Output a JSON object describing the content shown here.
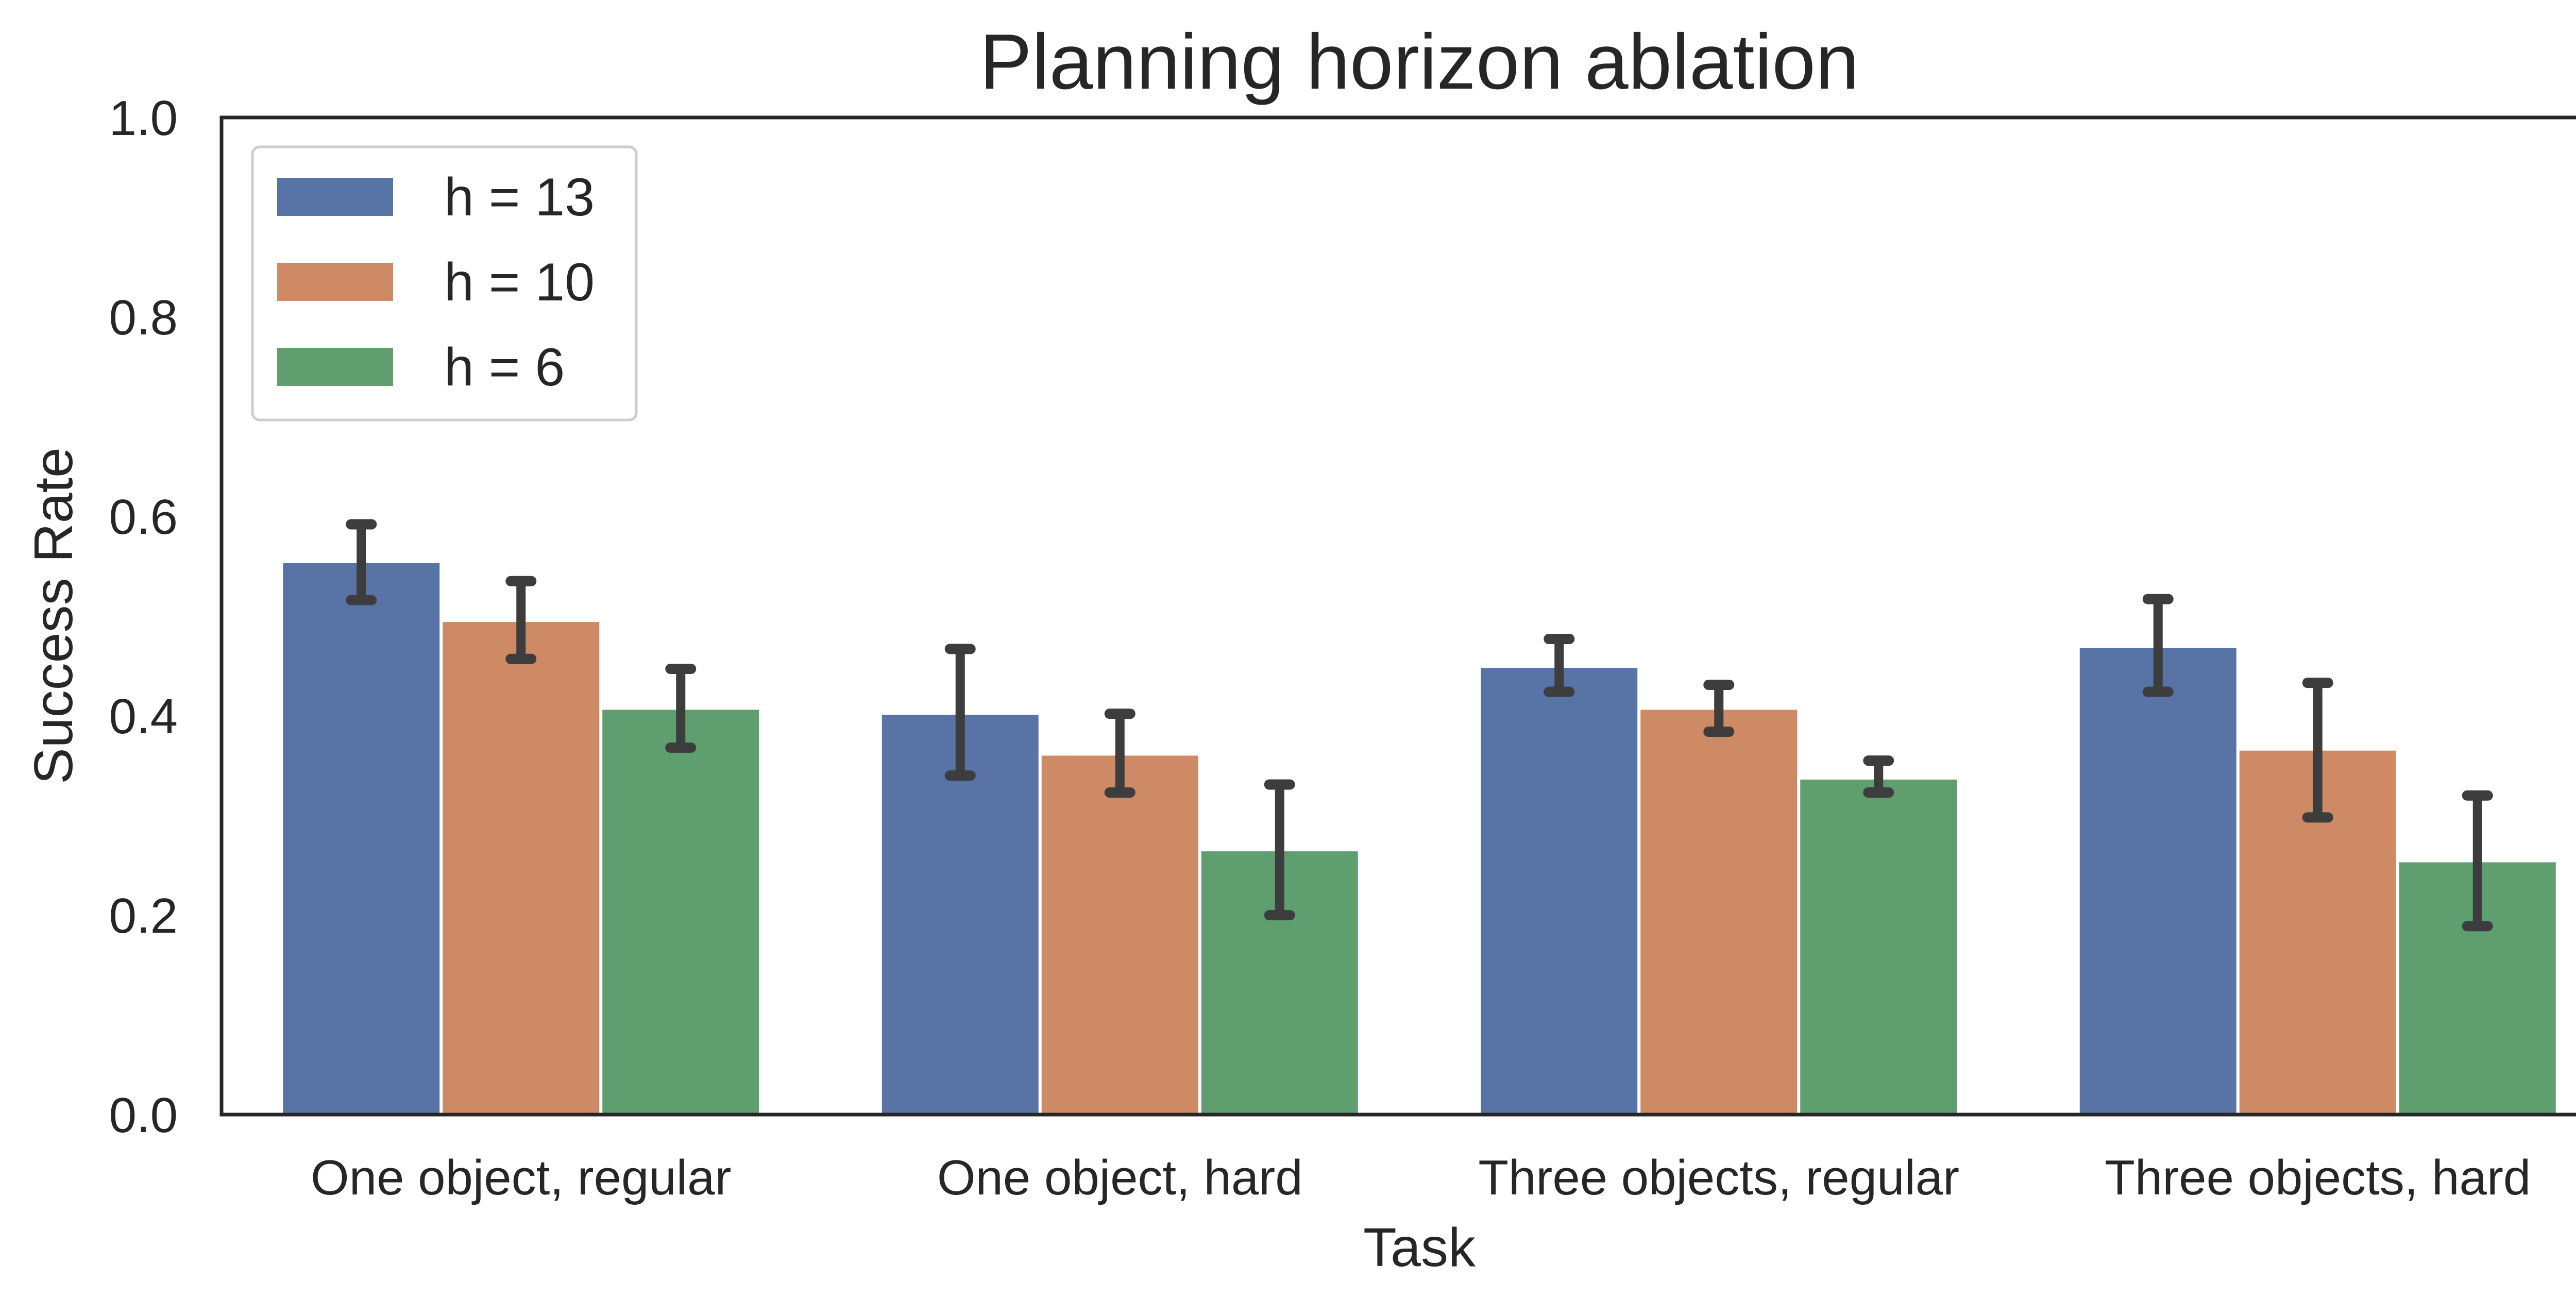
{
  "chart_data": {
    "type": "bar",
    "title": "Planning horizon ablation",
    "xlabel": "Task",
    "ylabel": "Success Rate",
    "ylim": [
      0,
      1.0
    ],
    "yticks": [
      "0.0",
      "0.2",
      "0.4",
      "0.6",
      "0.8",
      "1.0"
    ],
    "grid": false,
    "legend_position": "top-left",
    "categories": [
      "One object, regular",
      "One object, hard",
      "Three objects, regular",
      "Three objects, hard"
    ],
    "series": [
      {
        "name": "h = 13",
        "color": "#5874a6",
        "values": [
          0.553,
          0.401,
          0.448,
          0.468
        ],
        "error_low": [
          0.516,
          0.34,
          0.424,
          0.424
        ],
        "error_high": [
          0.592,
          0.467,
          0.477,
          0.517
        ]
      },
      {
        "name": "h = 10",
        "color": "#cd8a64",
        "values": [
          0.494,
          0.36,
          0.406,
          0.365
        ],
        "error_low": [
          0.457,
          0.323,
          0.384,
          0.298
        ],
        "error_high": [
          0.535,
          0.402,
          0.431,
          0.433
        ]
      },
      {
        "name": "h = 6",
        "color": "#5f9e6e",
        "values": [
          0.406,
          0.264,
          0.336,
          0.253
        ],
        "error_low": [
          0.368,
          0.2,
          0.323,
          0.189
        ],
        "error_high": [
          0.447,
          0.331,
          0.355,
          0.32
        ]
      }
    ]
  }
}
